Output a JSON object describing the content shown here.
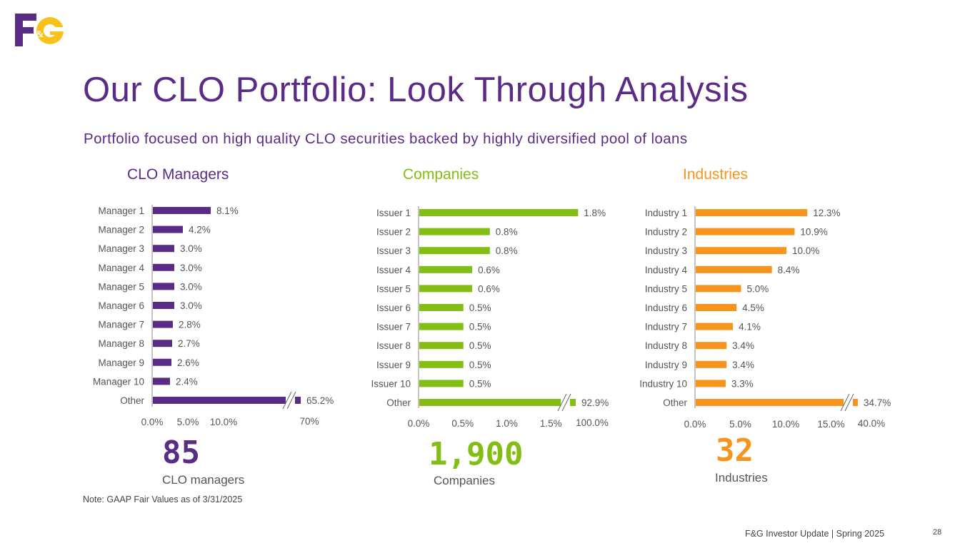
{
  "logo": {
    "text": "F&G",
    "brand_purple": "#5b2c86",
    "brand_yellow": "#f7c21b"
  },
  "header": {
    "title": "Our CLO Portfolio: Look Through Analysis",
    "subtitle": "Portfolio focused on high quality CLO securities backed by highly diversified pool of loans"
  },
  "colors": {
    "purple": "#5b2c86",
    "green": "#84bd14",
    "orange": "#f7941d"
  },
  "chart_data": [
    {
      "type": "bar",
      "orientation": "horizontal",
      "title": "CLO Managers",
      "color": "#5b2c86",
      "categories": [
        "Manager 1",
        "Manager 2",
        "Manager 3",
        "Manager 4",
        "Manager 5",
        "Manager 6",
        "Manager 7",
        "Manager 8",
        "Manager 9",
        "Manager 10",
        "Other"
      ],
      "values": [
        8.1,
        4.2,
        3.0,
        3.0,
        3.0,
        3.0,
        2.8,
        2.7,
        2.6,
        2.4,
        65.2
      ],
      "value_labels": [
        "8.1%",
        "4.2%",
        "3.0%",
        "3.0%",
        "3.0%",
        "3.0%",
        "2.8%",
        "2.7%",
        "2.6%",
        "2.4%",
        "65.2%"
      ],
      "xlim": [
        0,
        14
      ],
      "axis_break": {
        "category": "Other",
        "tick_label": "70%"
      },
      "ticks": [
        0,
        5,
        10
      ],
      "tick_labels": [
        "0.0%",
        "5.0%",
        "10.0%"
      ],
      "big_number": "85",
      "big_label": "CLO managers"
    },
    {
      "type": "bar",
      "orientation": "horizontal",
      "title": "Companies",
      "color": "#84bd14",
      "categories": [
        "Issuer 1",
        "Issuer 2",
        "Issuer 3",
        "Issuer 4",
        "Issuer 5",
        "Issuer 6",
        "Issuer 7",
        "Issuer 8",
        "Issuer 9",
        "Issuer 10",
        "Other"
      ],
      "values": [
        1.8,
        0.8,
        0.8,
        0.6,
        0.6,
        0.5,
        0.5,
        0.5,
        0.5,
        0.5,
        92.9
      ],
      "value_labels": [
        "1.8%",
        "0.8%",
        "0.8%",
        "0.6%",
        "0.6%",
        "0.5%",
        "0.5%",
        "0.5%",
        "0.5%",
        "0.5%",
        "92.9%"
      ],
      "xlim": [
        0,
        2.0
      ],
      "axis_break": {
        "category": "Other",
        "tick_label": "100.0%"
      },
      "ticks": [
        0,
        0.5,
        1.0,
        1.5
      ],
      "tick_labels": [
        "0.0%",
        "0.5%",
        "1.0%",
        "1.5%"
      ],
      "big_number": "1,900",
      "big_label": "Companies"
    },
    {
      "type": "bar",
      "orientation": "horizontal",
      "title": "Industries",
      "color": "#f7941d",
      "categories": [
        "Industry 1",
        "Industry 2",
        "Industry 3",
        "Industry 4",
        "Industry 5",
        "Industry 6",
        "Industry 7",
        "Industry 8",
        "Industry 9",
        "Industry 10",
        "Other"
      ],
      "values": [
        12.3,
        10.9,
        10.0,
        8.4,
        5.0,
        4.5,
        4.1,
        3.4,
        3.4,
        3.3,
        34.7
      ],
      "value_labels": [
        "12.3%",
        "10.9%",
        "10.0%",
        "8.4%",
        "5.0%",
        "4.5%",
        "4.1%",
        "3.4%",
        "3.4%",
        "3.3%",
        "34.7%"
      ],
      "xlim": [
        0,
        20
      ],
      "axis_break": {
        "category": "Other",
        "tick_label": "40.0%"
      },
      "ticks": [
        0,
        5,
        10,
        15
      ],
      "tick_labels": [
        "0.0%",
        "5.0%",
        "10.0%",
        "15.0%"
      ],
      "big_number": "32",
      "big_label": "Industries"
    }
  ],
  "note": "Note: GAAP Fair Values as of 3/31/2025",
  "footer": {
    "text": "F&G Investor Update | Spring 2025",
    "page": "28"
  }
}
